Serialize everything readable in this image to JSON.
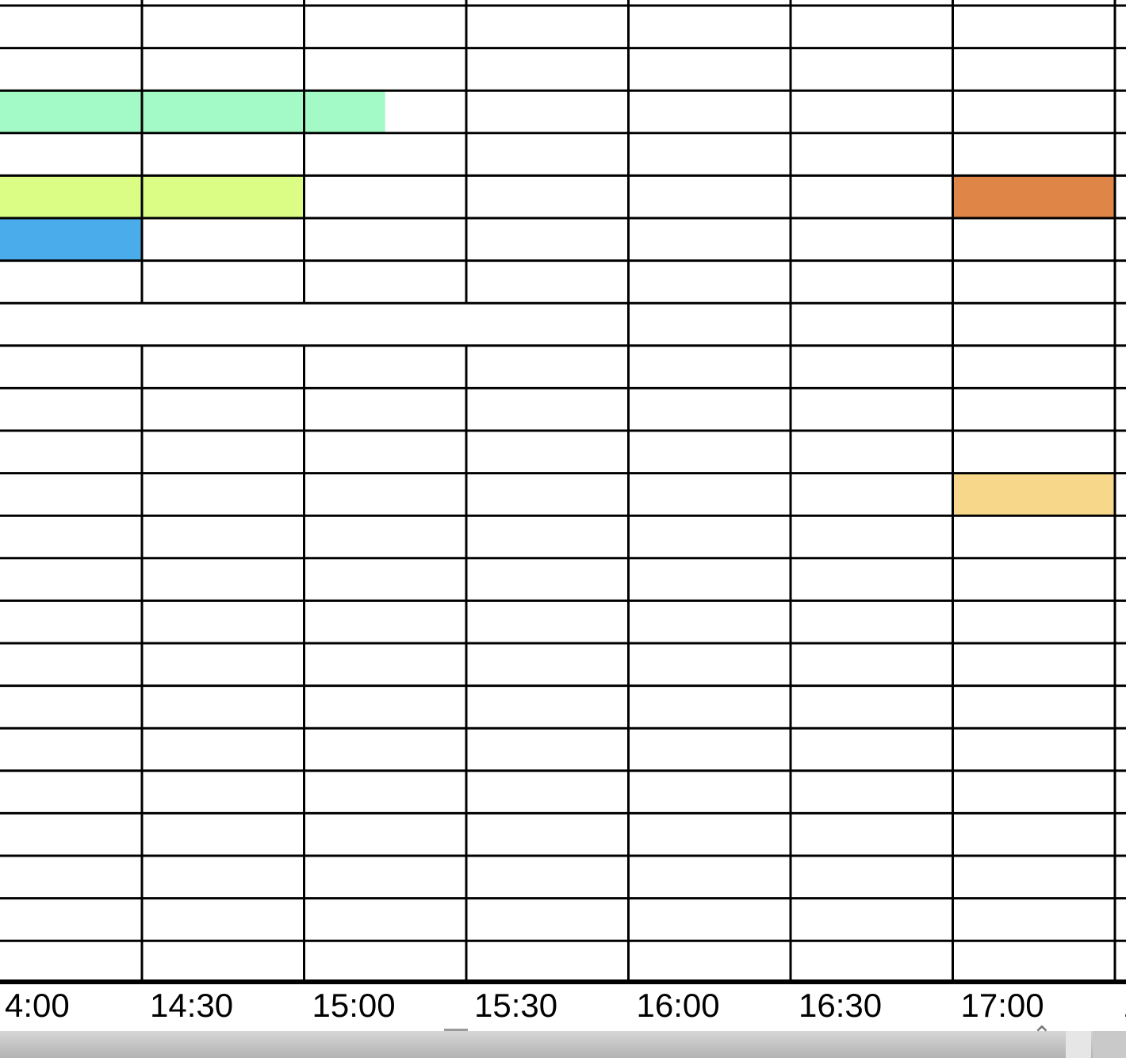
{
  "timeline": {
    "start_time": "13:30",
    "end_time": "17:30",
    "time_labels": [
      "4:00",
      "14:30",
      "15:00",
      "15:30",
      "16:00",
      "16:30",
      "17:00",
      "1"
    ],
    "row_count": 23
  },
  "events": [
    {
      "row": 2,
      "start": "13:30",
      "end": "15:15",
      "color": "#A3FAC6"
    },
    {
      "row": 4,
      "start": "13:30",
      "end": "15:00",
      "color": "#DCFD85"
    },
    {
      "row": 5,
      "start": "13:30",
      "end": "14:30",
      "color": "#4AACEB"
    },
    {
      "row": 4,
      "start": "17:00",
      "end": "17:30",
      "color": "#E08548"
    },
    {
      "row": 11,
      "start": "17:00",
      "end": "17:30",
      "color": "#F7D88A"
    }
  ],
  "bottom_bar": {
    "scroll_icon": "chevron-up-icon",
    "scroll_glyph": "⌃"
  }
}
